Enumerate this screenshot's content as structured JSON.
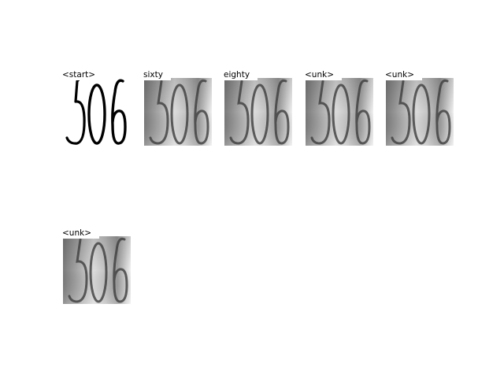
{
  "panels": [
    {
      "label": "<start>",
      "digits": "506",
      "kind": "binary"
    },
    {
      "label": "sixty",
      "digits": "506",
      "kind": "photo"
    },
    {
      "label": "eighty",
      "digits": "506",
      "kind": "photo"
    },
    {
      "label": "<unk>",
      "digits": "506",
      "kind": "photo"
    },
    {
      "label": "<unk>",
      "digits": "506",
      "kind": "photo"
    },
    {
      "label": "<unk>",
      "digits": "506",
      "kind": "photo"
    }
  ]
}
